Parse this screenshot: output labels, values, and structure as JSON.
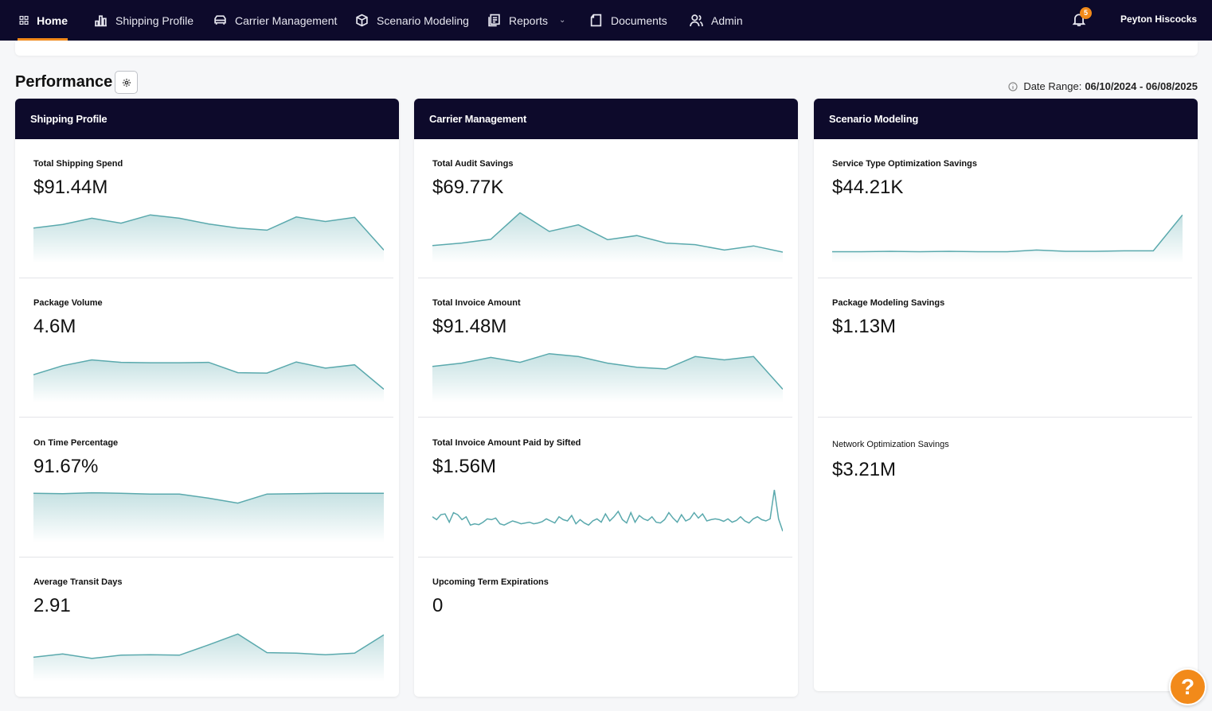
{
  "nav": {
    "items": [
      {
        "label": "Home",
        "icon": "grid-icon"
      },
      {
        "label": "Shipping Profile",
        "icon": "bar-chart-icon"
      },
      {
        "label": "Carrier Management",
        "icon": "truck-icon"
      },
      {
        "label": "Scenario Modeling",
        "icon": "cube-icon"
      },
      {
        "label": "Reports",
        "icon": "reports-icon"
      },
      {
        "label": "Documents",
        "icon": "document-icon"
      },
      {
        "label": "Admin",
        "icon": "users-icon"
      }
    ],
    "notification_count": "5",
    "user_name": "Peyton Hiscocks"
  },
  "header": {
    "title": "Performance",
    "date_range_label": "Date Range:",
    "date_range_value": "06/10/2024 - 06/08/2025"
  },
  "panels": [
    {
      "title": "Shipping Profile",
      "metrics": [
        {
          "label": "Total Shipping Spend",
          "value": "$91.44M",
          "trend": [
            0.58,
            0.67,
            0.82,
            0.7,
            0.9,
            0.82,
            0.68,
            0.58,
            0.53,
            0.85,
            0.74,
            0.84,
            0.05
          ]
        },
        {
          "label": "Package Volume",
          "value": "4.6M",
          "trend": [
            0.4,
            0.62,
            0.76,
            0.7,
            0.69,
            0.69,
            0.7,
            0.45,
            0.44,
            0.71,
            0.56,
            0.64,
            0.05
          ]
        },
        {
          "label": "On Time Percentage",
          "value": "91.67%",
          "trend": [
            0.92,
            0.91,
            0.93,
            0.92,
            0.9,
            0.9,
            0.8,
            0.68,
            0.9,
            0.91,
            0.92,
            0.92,
            0.92
          ]
        },
        {
          "label": "Average Transit Days",
          "value": "2.91",
          "trend": [
            0.32,
            0.4,
            0.29,
            0.37,
            0.38,
            0.37,
            0.62,
            0.88,
            0.43,
            0.42,
            0.38,
            0.42,
            0.86
          ]
        }
      ]
    },
    {
      "title": "Carrier Management",
      "metrics": [
        {
          "label": "Total Audit Savings",
          "value": "$69.77K",
          "trend": [
            0.16,
            0.22,
            0.31,
            0.95,
            0.5,
            0.66,
            0.3,
            0.4,
            0.22,
            0.18,
            0.05,
            0.15,
            0.0
          ]
        },
        {
          "label": "Total Invoice Amount",
          "value": "$91.48M",
          "trend": [
            0.6,
            0.68,
            0.82,
            0.7,
            0.91,
            0.84,
            0.68,
            0.58,
            0.54,
            0.84,
            0.76,
            0.84,
            0.05
          ]
        },
        {
          "label": "Total Invoice Amount Paid by Sifted",
          "value": "$1.56M",
          "trend": [
            0.35,
            0.28,
            0.4,
            0.42,
            0.22,
            0.45,
            0.4,
            0.28,
            0.35,
            0.15,
            0.18,
            0.16,
            0.22,
            0.3,
            0.28,
            0.32,
            0.18,
            0.15,
            0.2,
            0.25,
            0.22,
            0.18,
            0.2,
            0.22,
            0.18,
            0.2,
            0.23,
            0.3,
            0.25,
            0.2,
            0.35,
            0.28,
            0.25,
            0.38,
            0.18,
            0.28,
            0.2,
            0.15,
            0.25,
            0.3,
            0.22,
            0.42,
            0.25,
            0.35,
            0.48,
            0.28,
            0.2,
            0.45,
            0.22,
            0.38,
            0.3,
            0.26,
            0.35,
            0.22,
            0.2,
            0.28,
            0.45,
            0.32,
            0.22,
            0.4,
            0.25,
            0.3,
            0.45,
            0.32,
            0.42,
            0.25,
            0.28,
            0.3,
            0.28,
            0.24,
            0.3,
            0.22,
            0.26,
            0.35,
            0.25,
            0.2,
            0.3,
            0.35,
            0.28,
            0.25,
            0.3,
            1.0,
            0.3,
            0.0
          ]
        },
        {
          "label": "Upcoming Term Expirations",
          "value": "0",
          "trend": []
        }
      ]
    },
    {
      "title": "Scenario Modeling",
      "metrics": [
        {
          "label": "Service Type Optimization Savings",
          "value": "$44.21K",
          "trend": [
            0.01,
            0.01,
            0.02,
            0.01,
            0.02,
            0.01,
            0.01,
            0.05,
            0.02,
            0.02,
            0.03,
            0.03,
            0.9
          ]
        },
        {
          "label": "Package Modeling Savings",
          "value": "$1.13M",
          "trend": []
        },
        {
          "label": "Network Optimization Savings",
          "value": "$3.21M",
          "trend": []
        }
      ]
    }
  ],
  "help_label": "?",
  "colors": {
    "nav_bg": "#0d0a2b",
    "accent": "#f28a1a",
    "sparkline": "#5aa9ad"
  }
}
